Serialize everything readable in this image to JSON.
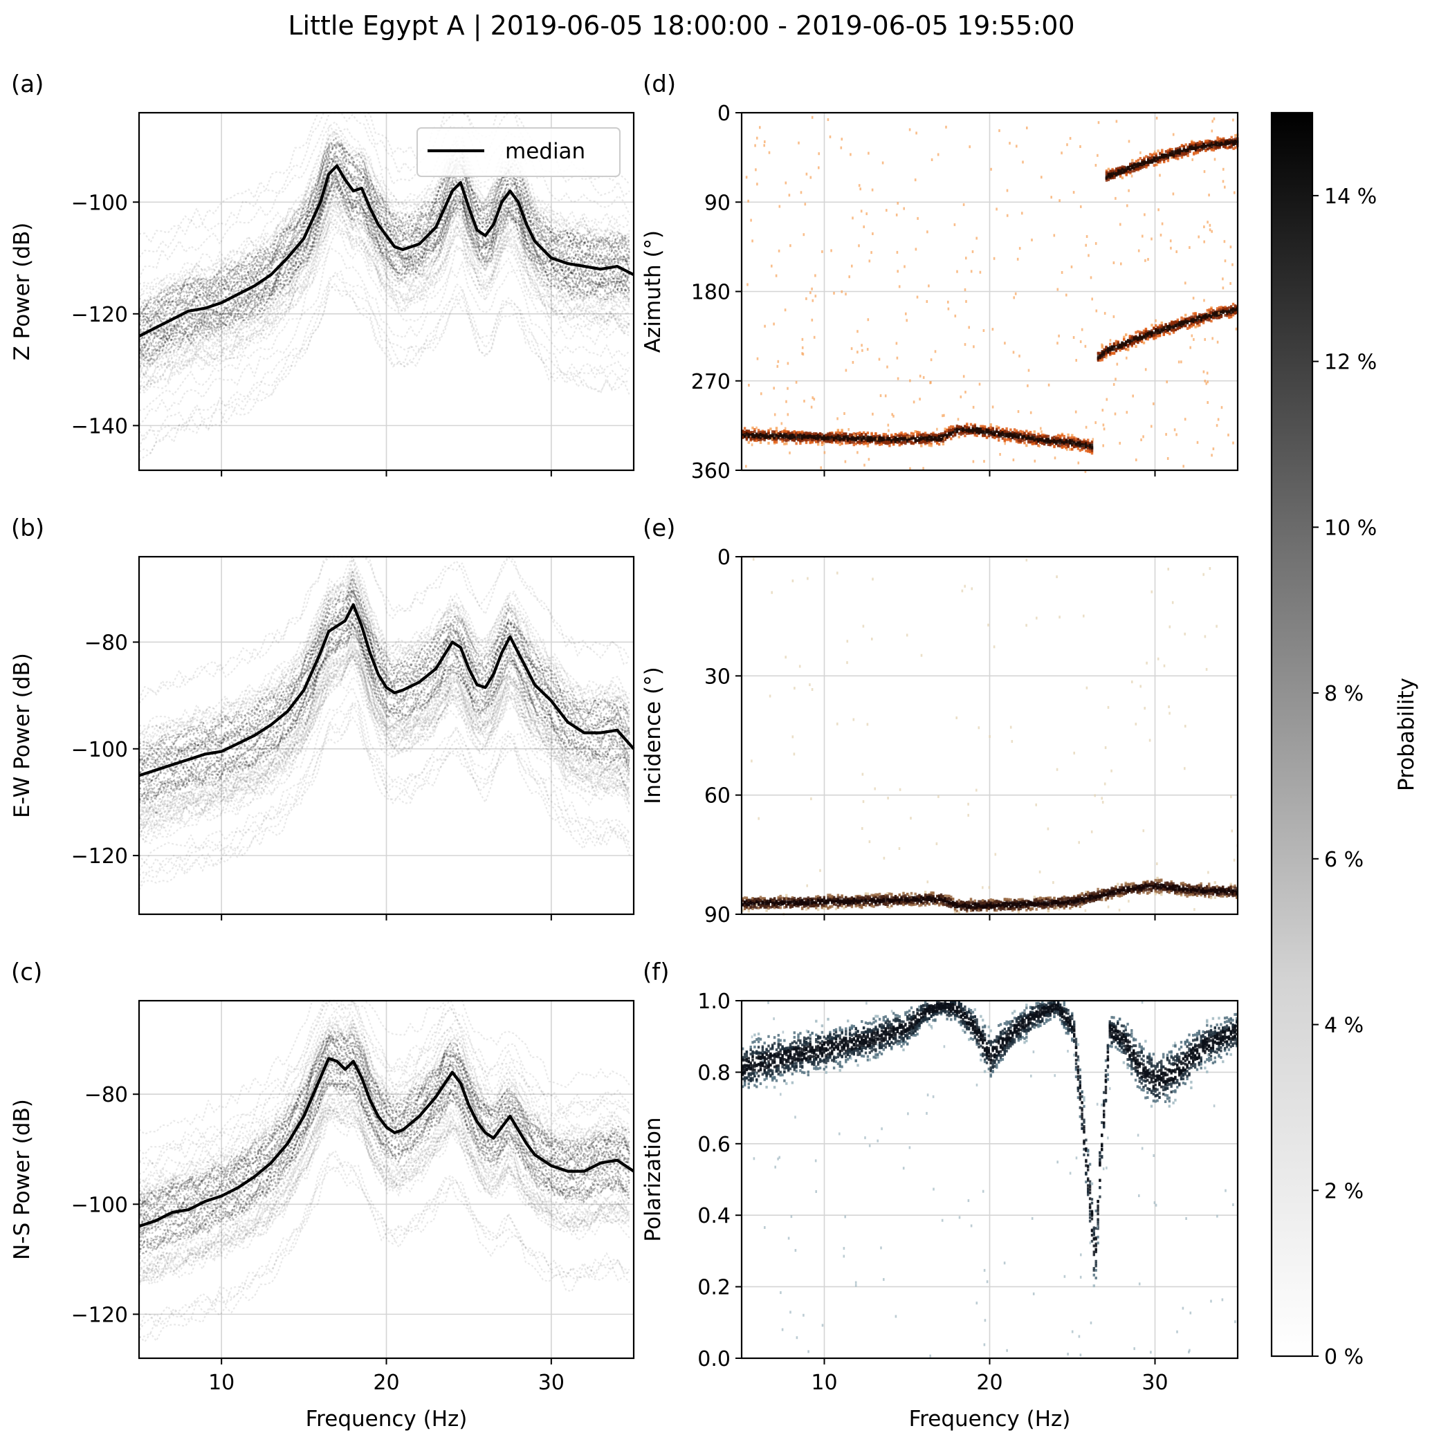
{
  "title": "Little Egypt A | 2019-06-05 18:00:00 - 2019-06-05 19:55:00",
  "colorbar": {
    "label": "Probability",
    "ticks": [
      "0 %",
      "2 %",
      "4 %",
      "6 %",
      "8 %",
      "10 %",
      "12 %",
      "14 %"
    ],
    "range": [
      0,
      15
    ]
  },
  "chart_data": [
    {
      "id": "a",
      "letter": "(a)",
      "type": "line",
      "title": "",
      "xlabel": "",
      "ylabel": "Z Power (dB)",
      "xlim": [
        5,
        35
      ],
      "ylim": [
        -148,
        -84
      ],
      "xticks": [
        10,
        20,
        30
      ],
      "yticks": [
        -140,
        -120,
        -100
      ],
      "ytick_labels": [
        "−140",
        "−120",
        "−100"
      ],
      "legend": {
        "label": "median",
        "position": "top-right"
      },
      "series": [
        {
          "name": "median",
          "x": [
            5,
            6,
            7,
            8,
            9,
            10,
            11,
            12,
            13,
            14,
            15,
            16,
            16.5,
            17,
            17.5,
            18,
            18.5,
            19,
            19.5,
            20,
            20.5,
            21,
            22,
            23,
            24,
            24.5,
            25,
            25.5,
            26,
            26.5,
            27,
            27.5,
            28,
            28.5,
            29,
            30,
            31,
            32,
            33,
            34,
            35
          ],
          "y": [
            -124,
            -122.5,
            -121,
            -119.5,
            -119,
            -118,
            -116.5,
            -115,
            -113,
            -110,
            -106.5,
            -100,
            -95,
            -93.5,
            -96,
            -98,
            -97.5,
            -101,
            -104,
            -106,
            -108,
            -108.5,
            -107.5,
            -104.5,
            -98,
            -96.5,
            -101,
            -105,
            -106,
            -104,
            -100,
            -98,
            -100,
            -104,
            -107,
            -110,
            -111,
            -111.5,
            -112,
            -111.5,
            -113
          ]
        }
      ]
    },
    {
      "id": "b",
      "letter": "(b)",
      "type": "line",
      "title": "",
      "xlabel": "",
      "ylabel": "E-W Power (dB)",
      "xlim": [
        5,
        35
      ],
      "ylim": [
        -131,
        -64
      ],
      "xticks": [
        10,
        20,
        30
      ],
      "yticks": [
        -120,
        -100,
        -80
      ],
      "ytick_labels": [
        "−120",
        "−100",
        "−80"
      ],
      "series": [
        {
          "name": "median",
          "x": [
            5,
            6,
            7,
            8,
            9,
            10,
            11,
            12,
            13,
            14,
            15,
            16,
            16.5,
            17,
            17.5,
            18,
            18.5,
            19,
            19.5,
            20,
            20.5,
            21,
            22,
            23,
            24,
            24.5,
            25,
            25.5,
            26,
            26.5,
            27,
            27.5,
            28,
            28.5,
            29,
            30,
            31,
            32,
            33,
            34,
            35
          ],
          "y": [
            -105,
            -104,
            -103,
            -102,
            -101,
            -100.5,
            -99,
            -97.5,
            -95.5,
            -93,
            -89,
            -82,
            -78,
            -77,
            -76,
            -73,
            -77,
            -82,
            -86,
            -88.5,
            -89.5,
            -89,
            -87.5,
            -85,
            -80,
            -81,
            -85,
            -88,
            -88.5,
            -86,
            -82,
            -79,
            -82,
            -85,
            -88,
            -91,
            -95,
            -97,
            -97,
            -96.5,
            -100
          ]
        }
      ]
    },
    {
      "id": "c",
      "letter": "(c)",
      "type": "line",
      "title": "",
      "xlabel": "Frequency (Hz)",
      "ylabel": "N-S Power (dB)",
      "xlim": [
        5,
        35
      ],
      "ylim": [
        -128,
        -63
      ],
      "xticks": [
        10,
        20,
        30
      ],
      "yticks": [
        -120,
        -100,
        -80
      ],
      "ytick_labels": [
        "−120",
        "−100",
        "−80"
      ],
      "series": [
        {
          "name": "median",
          "x": [
            5,
            6,
            7,
            8,
            9,
            10,
            11,
            12,
            13,
            14,
            15,
            16,
            16.5,
            17,
            17.5,
            18,
            18.5,
            19,
            19.5,
            20,
            20.5,
            21,
            22,
            23,
            24,
            24.5,
            25,
            25.5,
            26,
            26.5,
            27,
            27.5,
            28,
            28.5,
            29,
            30,
            31,
            32,
            33,
            34,
            35
          ],
          "y": [
            -104,
            -103,
            -101.5,
            -101,
            -99.5,
            -98.5,
            -97,
            -95,
            -92.5,
            -89,
            -84,
            -77,
            -73.5,
            -74,
            -75.5,
            -74,
            -77,
            -81,
            -84,
            -86,
            -87,
            -86.5,
            -84,
            -80.5,
            -76,
            -78,
            -82,
            -85,
            -87,
            -88,
            -86,
            -84,
            -86.5,
            -89,
            -91,
            -93,
            -94,
            -94,
            -92.5,
            -92,
            -94
          ]
        }
      ]
    },
    {
      "id": "d",
      "letter": "(d)",
      "type": "heatmap",
      "title": "",
      "xlabel": "",
      "ylabel": "Azimuth (°)",
      "xlim": [
        5,
        35
      ],
      "ylim": [
        360,
        0
      ],
      "xticks": [
        10,
        20,
        30
      ],
      "yticks": [
        0,
        90,
        180,
        270,
        360
      ],
      "ytick_labels": [
        "0",
        "90",
        "180",
        "270",
        "360"
      ],
      "colormap": "orange",
      "ridges": [
        {
          "x": [
            5,
            8,
            11,
            14,
            17,
            18,
            19,
            21,
            23,
            25,
            26.2
          ],
          "y": [
            323,
            325,
            326,
            328,
            326,
            318,
            318,
            323,
            328,
            331,
            335
          ]
        },
        {
          "x": [
            26.5,
            27,
            28,
            29,
            30,
            31,
            32,
            33,
            34,
            35
          ],
          "y": [
            245,
            238,
            232,
            225,
            219,
            214,
            209,
            204,
            200,
            196
          ]
        },
        {
          "x": [
            27,
            28,
            29,
            30,
            31,
            32,
            33,
            34,
            35
          ],
          "y": [
            63,
            57,
            51,
            45,
            40,
            35,
            32,
            30,
            28
          ]
        }
      ]
    },
    {
      "id": "e",
      "letter": "(e)",
      "type": "heatmap",
      "title": "",
      "xlabel": "",
      "ylabel": "Incidence (°)",
      "xlim": [
        5,
        35
      ],
      "ylim": [
        90,
        0
      ],
      "xticks": [
        10,
        20,
        30
      ],
      "yticks": [
        0,
        30,
        60,
        90
      ],
      "ytick_labels": [
        "0",
        "30",
        "60",
        "90"
      ],
      "colormap": "brown",
      "ridges": [
        {
          "x": [
            5,
            10,
            15,
            17,
            18,
            20,
            23,
            25,
            26,
            27,
            28,
            30,
            32,
            35
          ],
          "y": [
            87,
            86.5,
            86,
            85.8,
            87.5,
            87.5,
            87,
            86.5,
            85.5,
            84.5,
            83.5,
            82.5,
            83.5,
            84
          ]
        }
      ]
    },
    {
      "id": "f",
      "letter": "(f)",
      "type": "heatmap",
      "title": "",
      "xlabel": "Frequency (Hz)",
      "ylabel": "Polarization",
      "xlim": [
        5,
        35
      ],
      "ylim": [
        0.0,
        1.0
      ],
      "xticks": [
        10,
        20,
        30
      ],
      "yticks": [
        0.0,
        0.2,
        0.4,
        0.6,
        0.8,
        1.0
      ],
      "ytick_labels": [
        "0.0",
        "0.2",
        "0.4",
        "0.6",
        "0.8",
        "1.0"
      ],
      "colormap": "bluegray",
      "ridges": [
        {
          "x": [
            5,
            7,
            9,
            11,
            13,
            15,
            16,
            17,
            18,
            19,
            20,
            21,
            22,
            23,
            24,
            25,
            25.5,
            26,
            26.3,
            26.7,
            27.2,
            28,
            29,
            30,
            31,
            32,
            33,
            34,
            35
          ],
          "y": [
            0.82,
            0.84,
            0.86,
            0.88,
            0.9,
            0.93,
            0.97,
            0.99,
            0.98,
            0.93,
            0.85,
            0.9,
            0.94,
            0.97,
            0.99,
            0.93,
            0.7,
            0.45,
            0.28,
            0.6,
            0.92,
            0.9,
            0.82,
            0.78,
            0.8,
            0.84,
            0.88,
            0.9,
            0.92
          ]
        }
      ]
    }
  ]
}
